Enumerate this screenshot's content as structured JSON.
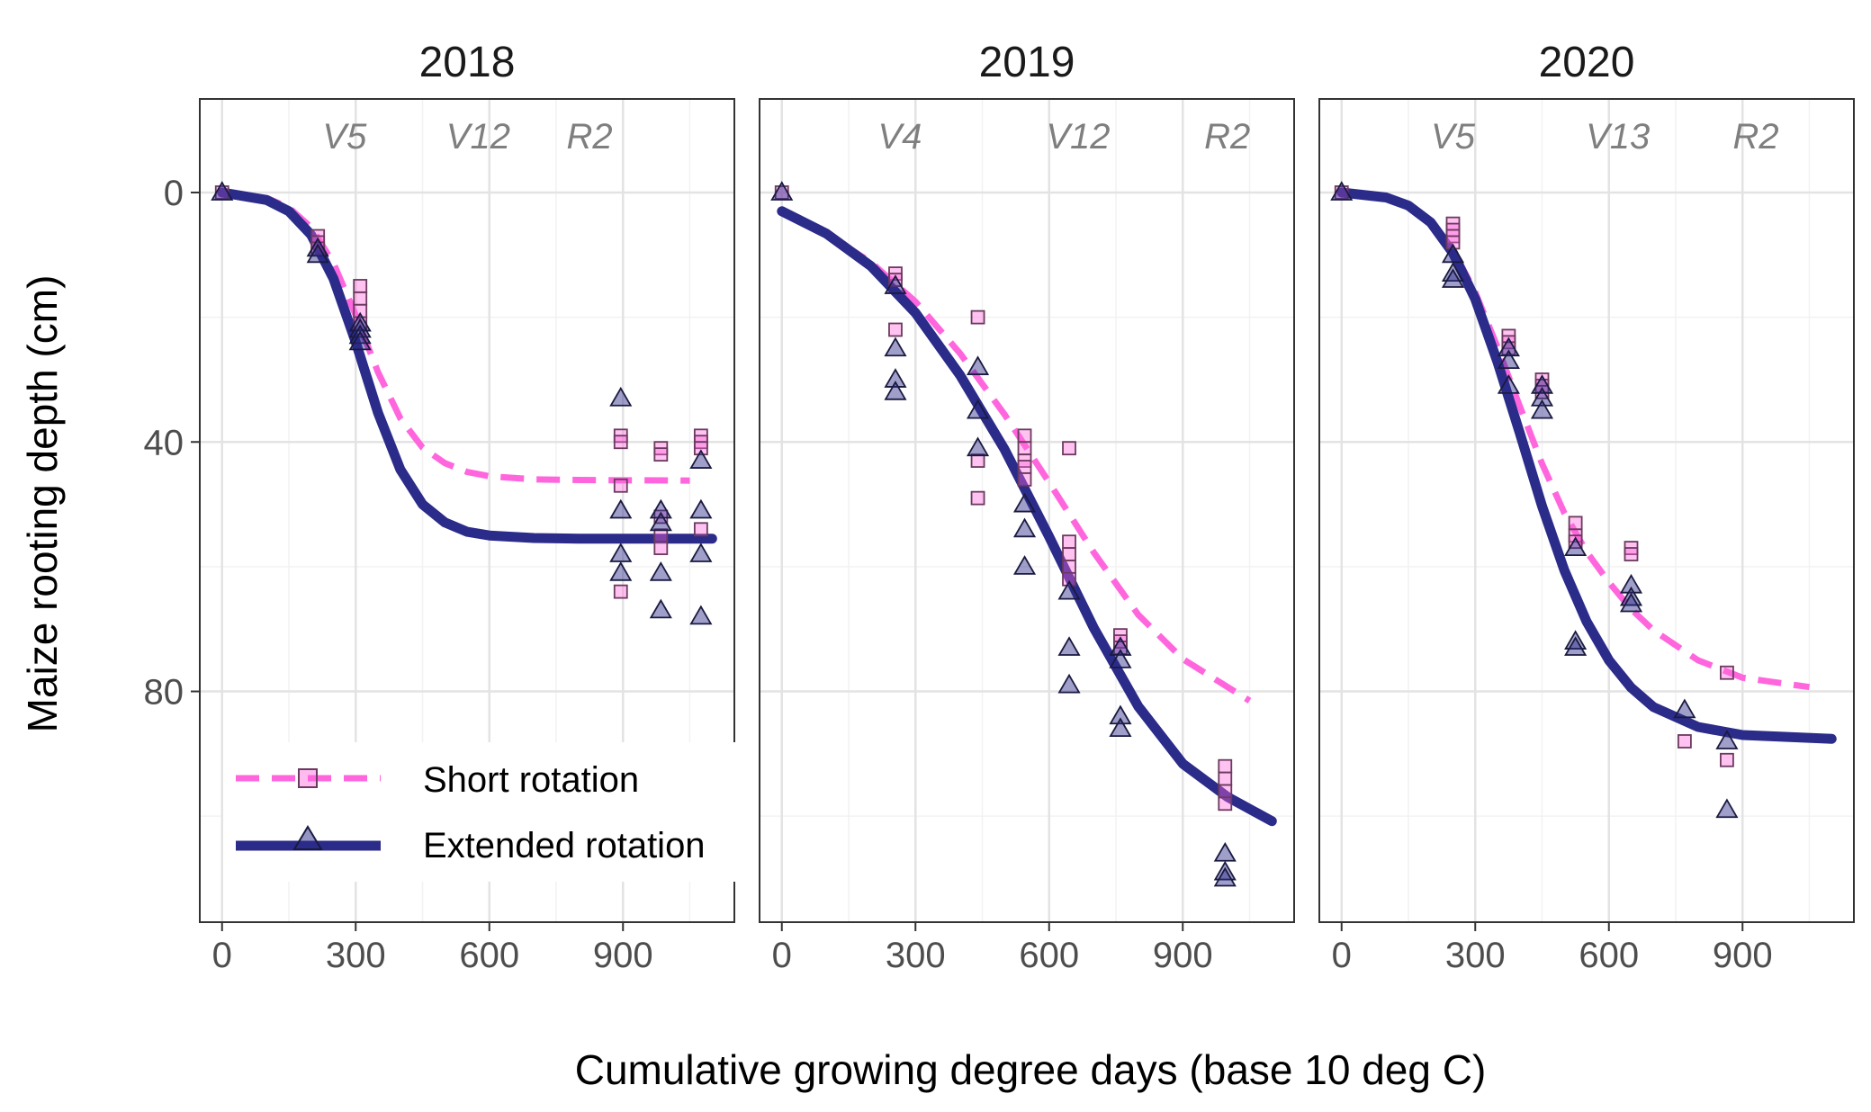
{
  "chart_data": {
    "type": "scatter",
    "xlabel": "Cumulative growing degree days (base 10 deg C)",
    "ylabel": "Maize rooting depth (cm)",
    "xlim": [
      -50,
      1150
    ],
    "ylim": [
      -15,
      117
    ],
    "y_reversed": true,
    "x_ticks": [
      0,
      300,
      600,
      900
    ],
    "y_ticks": [
      0,
      40,
      80
    ],
    "legend": {
      "placement": "bottom-left",
      "entries": [
        {
          "name": "Short rotation",
          "color": "#ff66dd",
          "marker": "square",
          "line": "dashed"
        },
        {
          "name": "Extended rotation",
          "color": "#2b2b8a",
          "marker": "triangle",
          "line": "solid"
        }
      ]
    },
    "panels": [
      {
        "title": "2018",
        "stages": [
          {
            "label": "V5",
            "x": 275
          },
          {
            "label": "V12",
            "x": 575
          },
          {
            "label": "R2",
            "x": 825
          }
        ],
        "short_curve": [
          [
            0,
            0
          ],
          [
            100,
            0.9
          ],
          [
            150,
            2.4
          ],
          [
            200,
            5.6
          ],
          [
            250,
            11.3
          ],
          [
            300,
            19.7
          ],
          [
            350,
            28.8
          ],
          [
            400,
            36.2
          ],
          [
            450,
            40.9
          ],
          [
            500,
            43.4
          ],
          [
            550,
            44.8
          ],
          [
            600,
            45.5
          ],
          [
            700,
            46.0
          ],
          [
            800,
            46.1
          ],
          [
            1050,
            46.2
          ]
        ],
        "extended_curve": [
          [
            0,
            0
          ],
          [
            100,
            1.2
          ],
          [
            150,
            3.0
          ],
          [
            200,
            6.8
          ],
          [
            250,
            13.8
          ],
          [
            300,
            24.0
          ],
          [
            350,
            35.3
          ],
          [
            400,
            44.4
          ],
          [
            450,
            50.0
          ],
          [
            500,
            52.9
          ],
          [
            550,
            54.4
          ],
          [
            600,
            55.0
          ],
          [
            700,
            55.4
          ],
          [
            800,
            55.5
          ],
          [
            1100,
            55.5
          ]
        ],
        "short_points": [
          [
            0,
            0
          ],
          [
            215,
            7
          ],
          [
            215,
            8
          ],
          [
            215,
            9
          ],
          [
            310,
            15
          ],
          [
            310,
            17
          ],
          [
            310,
            19
          ],
          [
            310,
            21
          ],
          [
            895,
            39
          ],
          [
            895,
            40
          ],
          [
            895,
            47
          ],
          [
            895,
            64
          ],
          [
            985,
            41
          ],
          [
            985,
            42
          ],
          [
            985,
            52
          ],
          [
            985,
            55
          ],
          [
            985,
            57
          ],
          [
            1075,
            39
          ],
          [
            1075,
            40
          ],
          [
            1075,
            41
          ],
          [
            1075,
            54
          ]
        ],
        "extended_points": [
          [
            0,
            0
          ],
          [
            215,
            9
          ],
          [
            215,
            10
          ],
          [
            310,
            21
          ],
          [
            310,
            22
          ],
          [
            310,
            23
          ],
          [
            310,
            24
          ],
          [
            895,
            33
          ],
          [
            895,
            51
          ],
          [
            895,
            58
          ],
          [
            895,
            61
          ],
          [
            985,
            51
          ],
          [
            985,
            53
          ],
          [
            985,
            61
          ],
          [
            985,
            67
          ],
          [
            1075,
            43
          ],
          [
            1075,
            51
          ],
          [
            1075,
            58
          ],
          [
            1075,
            68
          ]
        ]
      },
      {
        "title": "2019",
        "stages": [
          {
            "label": "V4",
            "x": 265
          },
          {
            "label": "V12",
            "x": 665
          },
          {
            "label": "R2",
            "x": 1000
          }
        ],
        "short_curve": [
          [
            0,
            3
          ],
          [
            100,
            6.6
          ],
          [
            200,
            11.2
          ],
          [
            300,
            17.5
          ],
          [
            400,
            25.8
          ],
          [
            500,
            35.6
          ],
          [
            600,
            46.5
          ],
          [
            700,
            57.7
          ],
          [
            800,
            67.7
          ],
          [
            900,
            74.8
          ],
          [
            1050,
            81.5
          ]
        ],
        "extended_curve": [
          [
            0,
            3
          ],
          [
            100,
            6.6
          ],
          [
            200,
            11.8
          ],
          [
            300,
            19.3
          ],
          [
            400,
            29.3
          ],
          [
            500,
            41.2
          ],
          [
            600,
            55.2
          ],
          [
            700,
            69.8
          ],
          [
            800,
            82.4
          ],
          [
            900,
            91.6
          ],
          [
            1000,
            96.9
          ],
          [
            1100,
            100.8
          ]
        ],
        "short_points": [
          [
            0,
            0
          ],
          [
            255,
            13
          ],
          [
            255,
            14
          ],
          [
            255,
            22
          ],
          [
            440,
            20
          ],
          [
            440,
            43
          ],
          [
            440,
            49
          ],
          [
            545,
            39
          ],
          [
            545,
            41
          ],
          [
            545,
            43
          ],
          [
            545,
            44
          ],
          [
            545,
            46
          ],
          [
            645,
            41
          ],
          [
            645,
            56
          ],
          [
            645,
            58
          ],
          [
            645,
            60
          ],
          [
            645,
            62
          ],
          [
            760,
            71
          ],
          [
            760,
            72
          ],
          [
            760,
            73
          ],
          [
            995,
            92
          ],
          [
            995,
            94
          ],
          [
            995,
            96
          ],
          [
            995,
            98
          ]
        ],
        "extended_points": [
          [
            0,
            0
          ],
          [
            255,
            15
          ],
          [
            255,
            25
          ],
          [
            255,
            30
          ],
          [
            255,
            32
          ],
          [
            440,
            28
          ],
          [
            440,
            35
          ],
          [
            440,
            41
          ],
          [
            545,
            50
          ],
          [
            545,
            54
          ],
          [
            545,
            60
          ],
          [
            645,
            64
          ],
          [
            645,
            73
          ],
          [
            645,
            79
          ],
          [
            760,
            73
          ],
          [
            760,
            75
          ],
          [
            760,
            84
          ],
          [
            760,
            86
          ],
          [
            995,
            106
          ],
          [
            995,
            109
          ],
          [
            995,
            110
          ]
        ]
      },
      {
        "title": "2020",
        "stages": [
          {
            "label": "V5",
            "x": 250
          },
          {
            "label": "V13",
            "x": 620
          },
          {
            "label": "R2",
            "x": 930
          }
        ],
        "short_curve": [
          [
            0,
            0
          ],
          [
            100,
            0.7
          ],
          [
            150,
            1.9
          ],
          [
            200,
            4.5
          ],
          [
            250,
            9.2
          ],
          [
            300,
            16.0
          ],
          [
            350,
            24.8
          ],
          [
            400,
            34.3
          ],
          [
            450,
            43.5
          ],
          [
            500,
            51.4
          ],
          [
            550,
            57.6
          ],
          [
            600,
            62.5
          ],
          [
            650,
            66.8
          ],
          [
            700,
            70.2
          ],
          [
            800,
            75.0
          ],
          [
            900,
            77.8
          ],
          [
            1050,
            79.3
          ]
        ],
        "extended_curve": [
          [
            0,
            0
          ],
          [
            100,
            0.8
          ],
          [
            150,
            2.1
          ],
          [
            200,
            4.8
          ],
          [
            250,
            9.7
          ],
          [
            300,
            17.1
          ],
          [
            350,
            27.2
          ],
          [
            400,
            38.6
          ],
          [
            450,
            50.3
          ],
          [
            500,
            60.6
          ],
          [
            550,
            68.8
          ],
          [
            600,
            75.0
          ],
          [
            650,
            79.4
          ],
          [
            700,
            82.5
          ],
          [
            800,
            85.7
          ],
          [
            900,
            87.0
          ],
          [
            1100,
            87.6
          ]
        ],
        "short_points": [
          [
            0,
            0
          ],
          [
            250,
            5
          ],
          [
            250,
            6
          ],
          [
            250,
            7
          ],
          [
            250,
            8
          ],
          [
            375,
            23
          ],
          [
            375,
            24
          ],
          [
            375,
            25
          ],
          [
            450,
            30
          ],
          [
            450,
            31
          ],
          [
            450,
            32
          ],
          [
            525,
            53
          ],
          [
            525,
            55
          ],
          [
            525,
            56
          ],
          [
            650,
            57
          ],
          [
            650,
            58
          ],
          [
            770,
            88
          ],
          [
            865,
            77
          ],
          [
            865,
            91
          ]
        ],
        "extended_points": [
          [
            0,
            0
          ],
          [
            250,
            10
          ],
          [
            250,
            13
          ],
          [
            250,
            14
          ],
          [
            375,
            25
          ],
          [
            375,
            27
          ],
          [
            375,
            31
          ],
          [
            450,
            31
          ],
          [
            450,
            33
          ],
          [
            450,
            35
          ],
          [
            525,
            57
          ],
          [
            525,
            72
          ],
          [
            525,
            73
          ],
          [
            650,
            63
          ],
          [
            650,
            65
          ],
          [
            650,
            66
          ],
          [
            770,
            83
          ],
          [
            865,
            88
          ],
          [
            865,
            99
          ]
        ]
      }
    ]
  }
}
